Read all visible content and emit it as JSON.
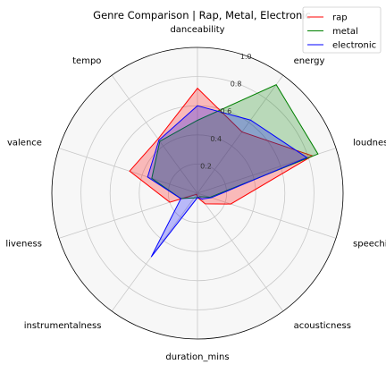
{
  "chart_data": {
    "type": "radar",
    "title": "Genre Comparison | Rap, Metal, Electronic",
    "axes": [
      "danceability",
      "energy",
      "loudness",
      "speechiness",
      "acousticness",
      "duration_mins",
      "instrumentalness",
      "liveness",
      "valence",
      "tempo"
    ],
    "rlim": [
      0,
      1.0
    ],
    "radial_ticks": [
      0.2,
      0.4,
      0.6,
      0.8,
      1.0
    ],
    "radial_tick_labels": [
      "0.2",
      "0.4",
      "0.6",
      "0.8",
      "1.0"
    ],
    "grid": true,
    "legend_position": "top-right",
    "series": [
      {
        "name": "rap",
        "color": "#ff0000",
        "fill": "#ff0000",
        "values": [
          0.72,
          0.52,
          0.83,
          0.24,
          0.09,
          0.03,
          0.01,
          0.2,
          0.49,
          0.46
        ]
      },
      {
        "name": "metal",
        "color": "#008000",
        "fill": "#008000",
        "values": [
          0.5,
          0.92,
          0.87,
          0.09,
          0.03,
          0.03,
          0.04,
          0.12,
          0.33,
          0.44
        ]
      },
      {
        "name": "electronic",
        "color": "#0000ff",
        "fill": "#0000ff",
        "values": [
          0.6,
          0.62,
          0.79,
          0.1,
          0.05,
          0.03,
          0.54,
          0.12,
          0.36,
          0.45
        ]
      }
    ]
  }
}
